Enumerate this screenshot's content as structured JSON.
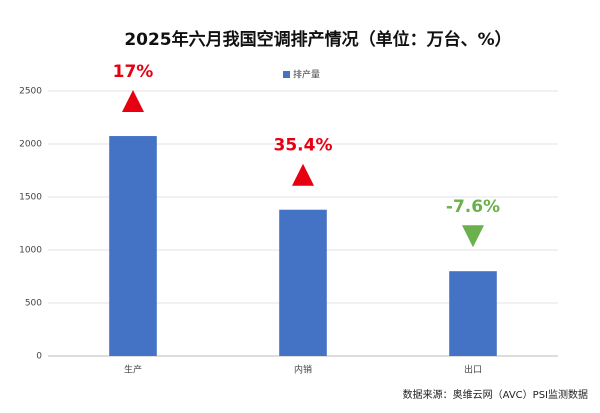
{
  "chart_data": {
    "type": "bar",
    "title": "2025年六月我国空调排产情况（单位：万台、%）",
    "categories": [
      "生产",
      "内销",
      "出口"
    ],
    "series": [
      {
        "name": "排产量",
        "color": "#4472c4",
        "values": [
          2075,
          1380,
          800
        ]
      }
    ],
    "ylim": [
      0,
      2500
    ],
    "yticks": [
      0,
      500,
      1000,
      1500,
      2000,
      2500
    ],
    "grid": true,
    "legend": "top",
    "annotations": [
      {
        "text": "17%",
        "direction": "up",
        "color": "#e60012"
      },
      {
        "text": "35.4%",
        "direction": "up",
        "color": "#e60012"
      },
      {
        "text": "-7.6%",
        "direction": "down",
        "color": "#6ab04c"
      }
    ],
    "source": "数据来源：奥维云网（AVC）PSI监测数据"
  }
}
